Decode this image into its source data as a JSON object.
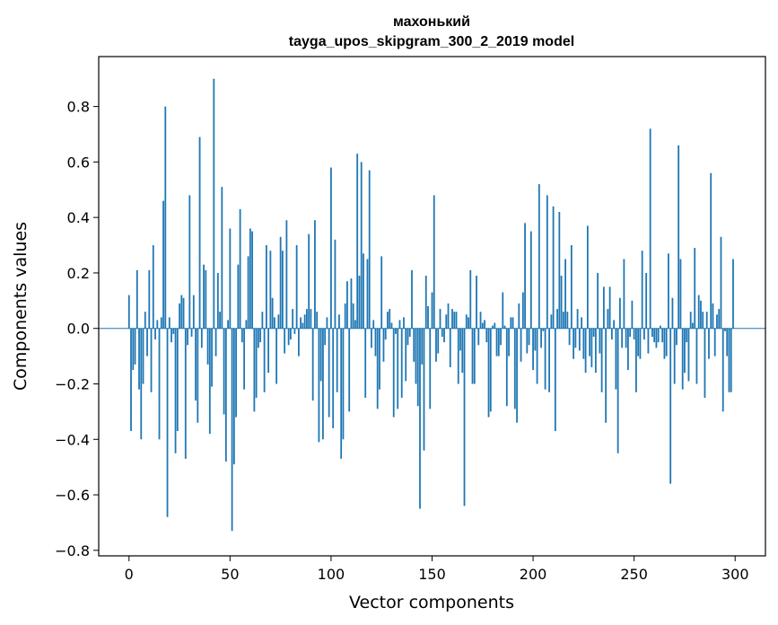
{
  "chart_data": {
    "type": "bar",
    "title_line1": "махонький",
    "title_line2": "tayga_upos_skipgram_300_2_2019 model",
    "xlabel": "Vector components",
    "ylabel": "Components values",
    "xlim": [
      -15,
      315
    ],
    "ylim": [
      -0.82,
      0.98
    ],
    "xticks": [
      0,
      50,
      100,
      150,
      200,
      250,
      300
    ],
    "yticks": [
      -0.8,
      -0.6,
      -0.4,
      -0.2,
      0.0,
      0.2,
      0.4,
      0.6,
      0.8
    ],
    "ytick_labels": [
      "−0.8",
      "−0.6",
      "−0.4",
      "−0.2",
      "0.0",
      "0.2",
      "0.4",
      "0.6",
      "0.8"
    ],
    "bar_color": "#1f77b4",
    "grid": false,
    "values": [
      0.12,
      -0.37,
      -0.15,
      -0.13,
      0.21,
      -0.22,
      -0.4,
      -0.2,
      0.06,
      -0.1,
      0.21,
      -0.23,
      0.3,
      -0.04,
      0.03,
      -0.4,
      0.04,
      0.46,
      0.8,
      -0.68,
      0.04,
      -0.05,
      -0.02,
      -0.45,
      -0.37,
      0.09,
      0.12,
      0.11,
      -0.47,
      -0.06,
      0.48,
      -0.03,
      0.12,
      -0.26,
      -0.34,
      0.69,
      -0.07,
      0.23,
      0.21,
      -0.13,
      -0.38,
      -0.21,
      0.9,
      -0.1,
      0.2,
      0.06,
      0.51,
      -0.31,
      -0.48,
      0.03,
      0.36,
      -0.73,
      -0.49,
      -0.32,
      0.23,
      0.43,
      -0.05,
      -0.22,
      0.03,
      0.26,
      0.36,
      0.35,
      -0.3,
      -0.25,
      -0.07,
      -0.05,
      0.06,
      -0.23,
      0.3,
      -0.16,
      0.28,
      0.11,
      0.04,
      -0.2,
      0.05,
      0.33,
      0.28,
      -0.09,
      0.39,
      -0.06,
      -0.04,
      0.07,
      -0.02,
      0.3,
      -0.1,
      0.04,
      0.02,
      0.05,
      0.07,
      0.34,
      0.07,
      -0.26,
      0.39,
      0.06,
      -0.41,
      -0.19,
      -0.4,
      -0.06,
      0.04,
      -0.32,
      0.58,
      -0.36,
      0.32,
      -0.23,
      0.05,
      -0.47,
      -0.4,
      0.09,
      0.17,
      -0.3,
      0.18,
      0.09,
      0.03,
      0.63,
      0.19,
      0.6,
      0.27,
      -0.25,
      0.25,
      0.57,
      -0.07,
      0.03,
      -0.1,
      -0.29,
      -0.22,
      0.26,
      -0.12,
      -0.04,
      0.06,
      0.07,
      0.02,
      -0.32,
      -0.02,
      -0.29,
      0.03,
      -0.25,
      0.04,
      -0.19,
      -0.06,
      -0.03,
      0.21,
      -0.12,
      -0.2,
      -0.28,
      -0.65,
      -0.13,
      -0.44,
      0.19,
      0.08,
      -0.29,
      0.13,
      0.48,
      -0.12,
      -0.09,
      0.07,
      -0.03,
      -0.05,
      0.05,
      0.09,
      -0.14,
      0.07,
      0.06,
      0.06,
      -0.2,
      -0.08,
      -0.16,
      -0.64,
      0.05,
      0.04,
      0.21,
      -0.2,
      -0.2,
      0.19,
      -0.06,
      0.06,
      0.02,
      0.03,
      -0.05,
      -0.32,
      -0.3,
      0.01,
      0.02,
      -0.1,
      -0.1,
      -0.06,
      0.13,
      0.01,
      -0.28,
      -0.1,
      0.04,
      0.04,
      -0.29,
      -0.34,
      0.09,
      -0.12,
      0.13,
      0.38,
      -0.09,
      -0.06,
      0.35,
      -0.15,
      -0.08,
      -0.2,
      0.52,
      -0.07,
      -0.01,
      -0.22,
      0.48,
      -0.23,
      0.05,
      0.44,
      -0.37,
      0.07,
      0.42,
      0.19,
      0.06,
      0.25,
      0.06,
      -0.06,
      0.3,
      -0.11,
      -0.07,
      0.07,
      -0.08,
      0.04,
      -0.11,
      -0.16,
      0.37,
      -0.1,
      -0.14,
      -0.03,
      -0.16,
      0.2,
      -0.09,
      -0.23,
      0.15,
      -0.34,
      0.07,
      0.15,
      -0.04,
      0.03,
      -0.22,
      -0.45,
      0.11,
      -0.07,
      0.25,
      -0.07,
      -0.15,
      -0.03,
      0.1,
      -0.04,
      -0.23,
      -0.1,
      -0.11,
      0.28,
      -0.04,
      0.2,
      -0.09,
      0.72,
      -0.03,
      -0.05,
      -0.07,
      -0.05,
      0.01,
      -0.05,
      -0.11,
      -0.1,
      0.27,
      -0.56,
      0.11,
      -0.2,
      -0.06,
      0.66,
      0.25,
      -0.22,
      -0.16,
      -0.05,
      -0.19,
      0.06,
      0.02,
      0.29,
      -0.2,
      0.12,
      0.1,
      0.06,
      -0.25,
      0.06,
      -0.11,
      0.56,
      0.09,
      -0.1,
      0.05,
      0.07,
      0.33,
      -0.3,
      -0.01,
      -0.1,
      -0.23,
      -0.23,
      0.25
    ]
  }
}
